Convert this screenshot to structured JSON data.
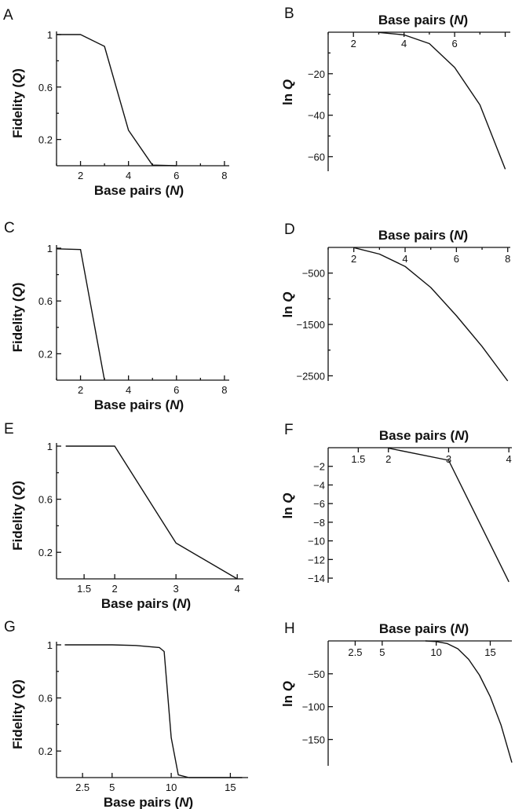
{
  "chart_data": [
    {
      "panel": "A",
      "type": "line",
      "xlabel": "Base pairs (N)",
      "ylabel": "Fidelity (Q)",
      "xlim": [
        1,
        8.2
      ],
      "ylim": [
        0,
        1
      ],
      "x_ticks": [
        2,
        4,
        6,
        8
      ],
      "x_tick_labels": [
        "2",
        "4",
        "6",
        "8"
      ],
      "y_ticks": [
        1,
        0.6,
        0.2
      ],
      "y_tick_labels": [
        "1",
        "0.6",
        "0.2"
      ],
      "x_minor_ticks": [
        1,
        3,
        5,
        7
      ],
      "y_minor_ticks": [
        0.8,
        0.4
      ],
      "series": [
        {
          "x": [
            1,
            2,
            3,
            4,
            5,
            6
          ],
          "y": [
            1,
            1,
            0.91,
            0.27,
            0.005,
            0
          ]
        }
      ]
    },
    {
      "panel": "B",
      "type": "line",
      "xlabel": "Base pairs (N)",
      "ylabel": "ln Q",
      "xlim": [
        1,
        8.2
      ],
      "ylim": [
        -67,
        0
      ],
      "x_ticks": [
        2,
        4,
        6,
        8
      ],
      "x_tick_labels": [
        "2",
        "4",
        "6",
        ""
      ],
      "y_ticks": [
        -20,
        -40,
        -60
      ],
      "y_tick_labels": [
        "−20",
        "−40",
        "−60"
      ],
      "x_minor_ticks": [
        1,
        3,
        5,
        7
      ],
      "y_minor_ticks": [
        -10,
        -30,
        -50
      ],
      "series": [
        {
          "x": [
            3,
            4,
            5,
            6,
            7,
            8
          ],
          "y": [
            -0.1,
            -1.3,
            -5.5,
            -17,
            -35,
            -66
          ]
        }
      ]
    },
    {
      "panel": "C",
      "type": "line",
      "xlabel": "Base pairs (N)",
      "ylabel": "Fidelity (Q)",
      "xlim": [
        1,
        8.2
      ],
      "ylim": [
        0,
        1
      ],
      "x_ticks": [
        2,
        4,
        6,
        8
      ],
      "x_tick_labels": [
        "2",
        "4",
        "6",
        "8"
      ],
      "y_ticks": [
        1,
        0.6,
        0.2
      ],
      "y_tick_labels": [
        "1",
        "0.6",
        "0.2"
      ],
      "x_minor_ticks": [
        1,
        3,
        5,
        7
      ],
      "y_minor_ticks": [
        0.8,
        0.4
      ],
      "series": [
        {
          "x": [
            1,
            2,
            3
          ],
          "y": [
            0.995,
            0.99,
            0
          ]
        }
      ]
    },
    {
      "panel": "D",
      "type": "line",
      "xlabel": "Base pairs (N)",
      "ylabel": "ln Q",
      "xlim": [
        1,
        8.1
      ],
      "ylim": [
        -2600,
        0
      ],
      "x_ticks": [
        2,
        4,
        6,
        8
      ],
      "x_tick_labels": [
        "2",
        "4",
        "6",
        "8"
      ],
      "y_ticks": [
        -500,
        -1500,
        -2500
      ],
      "y_tick_labels": [
        "−500",
        "−1500",
        "−2500"
      ],
      "x_minor_ticks": [
        1,
        3,
        5,
        7
      ],
      "y_minor_ticks": [
        -1000,
        -2000
      ],
      "series": [
        {
          "x": [
            2,
            3,
            4,
            5,
            6,
            7,
            8
          ],
          "y": [
            -5,
            -130,
            -370,
            -780,
            -1330,
            -1930,
            -2600
          ]
        }
      ]
    },
    {
      "panel": "E",
      "type": "line",
      "xlabel": "Base pairs (N)",
      "ylabel": "Fidelity (Q)",
      "xlim": [
        1.05,
        4.1
      ],
      "ylim": [
        0,
        1
      ],
      "x_ticks": [
        1.5,
        2,
        3,
        4
      ],
      "x_tick_labels": [
        "1.5",
        "2",
        "3",
        "4"
      ],
      "y_ticks": [
        1,
        0.6,
        0.2
      ],
      "y_tick_labels": [
        "1",
        "0.6",
        "0.2"
      ],
      "x_minor_ticks": [],
      "y_minor_ticks": [
        0.8,
        0.4
      ],
      "series": [
        {
          "x": [
            1.2,
            2,
            3,
            4
          ],
          "y": [
            1,
            1,
            0.27,
            0
          ]
        }
      ]
    },
    {
      "panel": "F",
      "type": "line",
      "xlabel": "Base pairs (N)",
      "ylabel": "ln Q",
      "xlim": [
        1,
        4.05
      ],
      "ylim": [
        -14.5,
        0
      ],
      "x_ticks": [
        1.5,
        2,
        3,
        4
      ],
      "x_tick_labels": [
        "1.5",
        "2",
        "3",
        "4"
      ],
      "y_ticks": [
        -2,
        -4,
        -6,
        -8,
        -10,
        -12,
        -14
      ],
      "y_tick_labels": [
        "−2",
        "−4",
        "−6",
        "−8",
        "−10",
        "−12",
        "−14"
      ],
      "x_minor_ticks": [],
      "y_minor_ticks": [],
      "series": [
        {
          "x": [
            2,
            3,
            4
          ],
          "y": [
            -0.05,
            -1.35,
            -14.4
          ]
        }
      ]
    },
    {
      "panel": "G",
      "type": "line",
      "xlabel": "Base pairs (N)",
      "ylabel": "Fidelity (Q)",
      "xlim": [
        0.3,
        16.5
      ],
      "ylim": [
        0,
        1
      ],
      "x_ticks": [
        2.5,
        5,
        10,
        15
      ],
      "x_tick_labels": [
        "2.5",
        "5",
        "10",
        "15"
      ],
      "y_ticks": [
        1,
        0.6,
        0.2
      ],
      "y_tick_labels": [
        "1",
        "0.6",
        "0.2"
      ],
      "x_minor_ticks": [],
      "y_minor_ticks": [
        0.8,
        0.4
      ],
      "series": [
        {
          "x": [
            1,
            5,
            7,
            9,
            9.4,
            10,
            10.6,
            11.5,
            16
          ],
          "y": [
            1,
            1,
            0.995,
            0.98,
            0.95,
            0.3,
            0.02,
            0,
            0
          ]
        }
      ]
    },
    {
      "panel": "H",
      "type": "line",
      "xlabel": "Base pairs (N)",
      "ylabel": "ln Q",
      "xlim": [
        0,
        17
      ],
      "ylim": [
        -190,
        0
      ],
      "x_ticks": [
        2.5,
        5,
        10,
        15
      ],
      "x_tick_labels": [
        "2.5",
        "5",
        "10",
        "15"
      ],
      "y_ticks": [
        -50,
        -100,
        -150
      ],
      "y_tick_labels": [
        "−50",
        "−100",
        "−150"
      ],
      "x_minor_ticks": [],
      "y_minor_ticks": [],
      "series": [
        {
          "x": [
            9,
            10,
            11,
            12,
            13,
            14,
            15,
            16,
            17
          ],
          "y": [
            0,
            -1,
            -4,
            -12,
            -28,
            -52,
            -85,
            -128,
            -185
          ]
        }
      ]
    }
  ]
}
